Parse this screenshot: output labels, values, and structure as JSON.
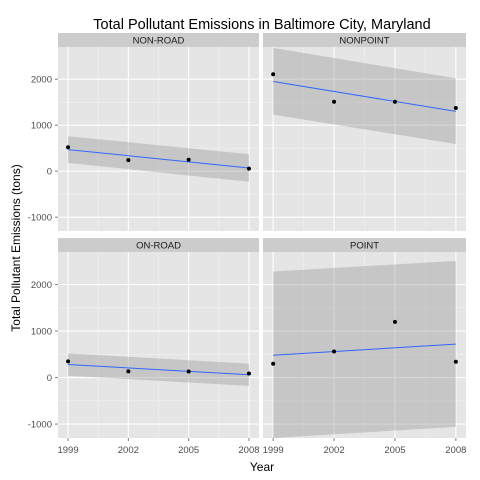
{
  "chart_data": {
    "type": "scatter",
    "title": "Total Pollutant Emissions in Baltimore City, Maryland",
    "xlabel": "Year",
    "ylabel": "Total Pollutant Emissions (tons)",
    "x_ticks": [
      1999,
      2002,
      2005,
      2008
    ],
    "y_ticks": [
      -1000,
      0,
      1000,
      2000
    ],
    "ylim": [
      -1300,
      2700
    ],
    "xlim": [
      1998.5,
      2008.5
    ],
    "grid": true,
    "colors": {
      "panel_bg": "#e5e5e5",
      "strip_bg": "#cccccc",
      "grid_major": "#ffffff",
      "point": "#000000",
      "trend_line": "#3366ff",
      "ribbon": "#999999"
    },
    "panels": [
      {
        "name": "NON-ROAD",
        "x": [
          1999,
          2002,
          2005,
          2008
        ],
        "y": [
          522,
          241,
          248,
          55
        ],
        "trend": {
          "start": 470,
          "end": 70
        },
        "ribbon_start": [
          180,
          760
        ],
        "ribbon_end": [
          -230,
          370
        ]
      },
      {
        "name": "NONPOINT",
        "x": [
          1999,
          2002,
          2005,
          2008
        ],
        "y": [
          2108,
          1510,
          1510,
          1373
        ],
        "trend": {
          "start": 1950,
          "end": 1300
        },
        "ribbon_start": [
          1230,
          2680
        ],
        "ribbon_end": [
          590,
          2020
        ]
      },
      {
        "name": "ON-ROAD",
        "x": [
          1999,
          2002,
          2005,
          2008
        ],
        "y": [
          347,
          134,
          130,
          88
        ],
        "trend": {
          "start": 280,
          "end": 60
        },
        "ribbon_start": [
          40,
          520
        ],
        "ribbon_end": [
          -180,
          300
        ]
      },
      {
        "name": "POINT",
        "x": [
          1999,
          2002,
          2005,
          2008
        ],
        "y": [
          297,
          561,
          1197,
          340
        ],
        "trend": {
          "start": 480,
          "end": 720
        },
        "ribbon_start": [
          -1300,
          2280
        ],
        "ribbon_end": [
          -1060,
          2510
        ]
      }
    ]
  }
}
